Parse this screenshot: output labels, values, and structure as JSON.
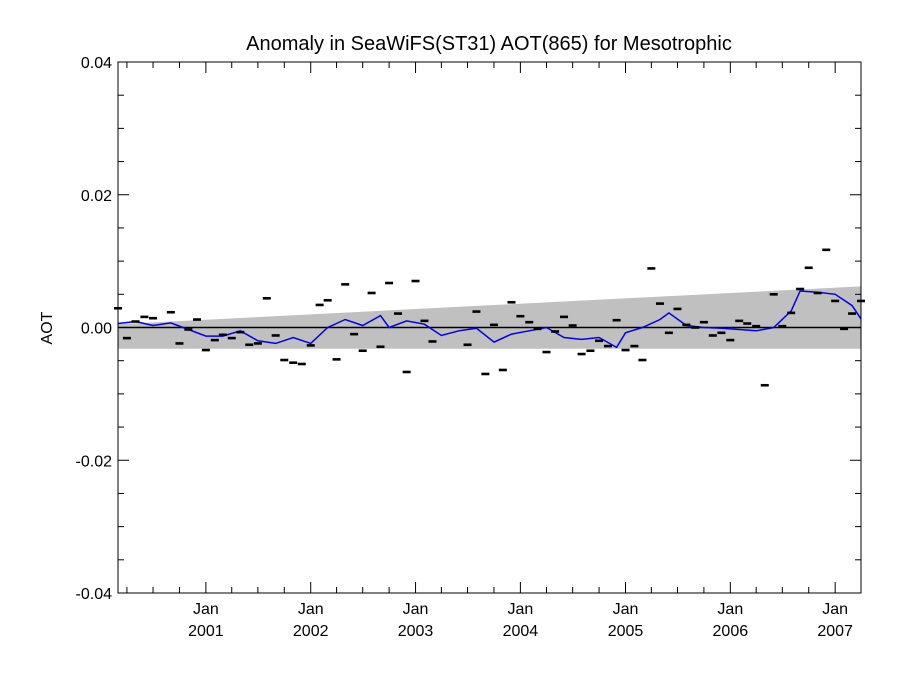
{
  "chart_data": {
    "type": "line",
    "title": "Anomaly in SeaWiFS(ST31) AOT(865) for Mesotrophic",
    "xlabel": "",
    "ylabel": "AOT",
    "xlim": [
      "2000-03-01",
      "2007-04-01"
    ],
    "ylim": [
      -0.04,
      0.04
    ],
    "yticks": [
      {
        "value": 0.04,
        "label": "0.04"
      },
      {
        "value": 0.02,
        "label": "0.02"
      },
      {
        "value": 0.0,
        "label": "0.00"
      },
      {
        "value": -0.02,
        "label": "-0.02"
      },
      {
        "value": -0.04,
        "label": "-0.04"
      }
    ],
    "xticks": [
      {
        "date": "2001-01-01",
        "label": [
          "Jan",
          "2001"
        ]
      },
      {
        "date": "2002-01-01",
        "label": [
          "Jan",
          "2002"
        ]
      },
      {
        "date": "2003-01-01",
        "label": [
          "Jan",
          "2003"
        ]
      },
      {
        "date": "2004-01-01",
        "label": [
          "Jan",
          "2004"
        ]
      },
      {
        "date": "2005-01-01",
        "label": [
          "Jan",
          "2005"
        ]
      },
      {
        "date": "2006-01-01",
        "label": [
          "Jan",
          "2006"
        ]
      },
      {
        "date": "2007-01-01",
        "label": [
          "Jan",
          "2007"
        ]
      }
    ],
    "zero_line": 0.0,
    "uncertainty_band": {
      "color": "#c0c0c0",
      "upper": [
        {
          "date": "2000-03-01",
          "y": 0.0005
        },
        {
          "date": "2007-04-01",
          "y": 0.0062
        }
      ],
      "lower": [
        {
          "date": "2000-03-01",
          "y": -0.0032
        },
        {
          "date": "2007-04-01",
          "y": -0.0032
        }
      ]
    },
    "series": [
      {
        "kind": "monthly",
        "marker": "dash",
        "color": "#000000",
        "points": [
          {
            "date": "2000-03-01",
            "y": 0.0029
          },
          {
            "date": "2000-04-01",
            "y": -0.0016
          },
          {
            "date": "2000-05-01",
            "y": 0.0009
          },
          {
            "date": "2000-06-01",
            "y": 0.0016
          },
          {
            "date": "2000-07-01",
            "y": 0.0014
          },
          {
            "date": "2000-09-01",
            "y": 0.0023
          },
          {
            "date": "2000-10-01",
            "y": -0.0024
          },
          {
            "date": "2000-11-01",
            "y": -0.0003
          },
          {
            "date": "2000-12-01",
            "y": 0.0012
          },
          {
            "date": "2001-01-01",
            "y": -0.0034
          },
          {
            "date": "2001-02-01",
            "y": -0.0019
          },
          {
            "date": "2001-03-01",
            "y": -0.0011
          },
          {
            "date": "2001-04-01",
            "y": -0.0016
          },
          {
            "date": "2001-05-01",
            "y": -0.0007
          },
          {
            "date": "2001-06-01",
            "y": -0.0026
          },
          {
            "date": "2001-07-01",
            "y": -0.0024
          },
          {
            "date": "2001-08-01",
            "y": 0.0044
          },
          {
            "date": "2001-09-01",
            "y": -0.0012
          },
          {
            "date": "2001-10-01",
            "y": -0.0049
          },
          {
            "date": "2001-11-01",
            "y": -0.0053
          },
          {
            "date": "2001-12-01",
            "y": -0.0055
          },
          {
            "date": "2002-01-01",
            "y": -0.0027
          },
          {
            "date": "2002-02-01",
            "y": 0.0034
          },
          {
            "date": "2002-03-01",
            "y": 0.0041
          },
          {
            "date": "2002-04-01",
            "y": -0.0048
          },
          {
            "date": "2002-05-01",
            "y": 0.0065
          },
          {
            "date": "2002-06-01",
            "y": -0.001
          },
          {
            "date": "2002-07-01",
            "y": -0.0035
          },
          {
            "date": "2002-08-01",
            "y": 0.0052
          },
          {
            "date": "2002-09-01",
            "y": -0.0029
          },
          {
            "date": "2002-10-01",
            "y": 0.0067
          },
          {
            "date": "2002-11-01",
            "y": 0.0021
          },
          {
            "date": "2002-12-01",
            "y": -0.0067
          },
          {
            "date": "2003-01-01",
            "y": 0.007
          },
          {
            "date": "2003-02-01",
            "y": 0.001
          },
          {
            "date": "2003-03-01",
            "y": -0.0021
          },
          {
            "date": "2003-07-01",
            "y": -0.0026
          },
          {
            "date": "2003-08-01",
            "y": 0.0024
          },
          {
            "date": "2003-09-01",
            "y": -0.007
          },
          {
            "date": "2003-10-01",
            "y": 0.0004
          },
          {
            "date": "2003-11-01",
            "y": -0.0064
          },
          {
            "date": "2003-12-01",
            "y": 0.0038
          },
          {
            "date": "2004-01-01",
            "y": 0.0017
          },
          {
            "date": "2004-02-01",
            "y": 0.0008
          },
          {
            "date": "2004-03-01",
            "y": -0.0002
          },
          {
            "date": "2004-04-01",
            "y": -0.0037
          },
          {
            "date": "2004-05-01",
            "y": -0.0006
          },
          {
            "date": "2004-06-01",
            "y": 0.0016
          },
          {
            "date": "2004-07-01",
            "y": 0.0003
          },
          {
            "date": "2004-08-01",
            "y": -0.004
          },
          {
            "date": "2004-09-01",
            "y": -0.0035
          },
          {
            "date": "2004-10-01",
            "y": -0.002
          },
          {
            "date": "2004-11-01",
            "y": -0.0028
          },
          {
            "date": "2004-12-01",
            "y": 0.0011
          },
          {
            "date": "2005-01-01",
            "y": -0.0034
          },
          {
            "date": "2005-02-01",
            "y": -0.0028
          },
          {
            "date": "2005-03-01",
            "y": -0.0049
          },
          {
            "date": "2005-04-01",
            "y": 0.0089
          },
          {
            "date": "2005-05-01",
            "y": 0.0036
          },
          {
            "date": "2005-06-01",
            "y": -0.0008
          },
          {
            "date": "2005-07-01",
            "y": 0.0028
          },
          {
            "date": "2005-08-01",
            "y": 0.0004
          },
          {
            "date": "2005-09-01",
            "y": 0.0
          },
          {
            "date": "2005-10-01",
            "y": 0.0008
          },
          {
            "date": "2005-11-01",
            "y": -0.0012
          },
          {
            "date": "2005-12-01",
            "y": -0.0008
          },
          {
            "date": "2006-01-01",
            "y": -0.0019
          },
          {
            "date": "2006-02-01",
            "y": 0.001
          },
          {
            "date": "2006-03-01",
            "y": 0.0006
          },
          {
            "date": "2006-04-01",
            "y": 0.0002
          },
          {
            "date": "2006-05-01",
            "y": -0.0087
          },
          {
            "date": "2006-06-01",
            "y": 0.005
          },
          {
            "date": "2006-07-01",
            "y": 0.0002
          },
          {
            "date": "2006-08-01",
            "y": 0.0022
          },
          {
            "date": "2006-09-01",
            "y": 0.0058
          },
          {
            "date": "2006-10-01",
            "y": 0.009
          },
          {
            "date": "2006-11-01",
            "y": 0.0052
          },
          {
            "date": "2006-12-01",
            "y": 0.0117
          },
          {
            "date": "2007-01-01",
            "y": 0.004
          },
          {
            "date": "2007-02-01",
            "y": -0.0002
          },
          {
            "date": "2007-03-01",
            "y": 0.0021
          },
          {
            "date": "2007-04-01",
            "y": 0.004
          }
        ]
      },
      {
        "kind": "smoothed",
        "marker": "line",
        "color": "#0000ee",
        "points": [
          {
            "date": "2000-03-01",
            "y": 0.0006
          },
          {
            "date": "2000-05-01",
            "y": 0.0009
          },
          {
            "date": "2000-07-01",
            "y": 0.0003
          },
          {
            "date": "2000-09-01",
            "y": 0.0007
          },
          {
            "date": "2000-11-01",
            "y": -0.0003
          },
          {
            "date": "2001-01-01",
            "y": -0.0013
          },
          {
            "date": "2001-03-01",
            "y": -0.0013
          },
          {
            "date": "2001-05-01",
            "y": -0.0005
          },
          {
            "date": "2001-07-01",
            "y": -0.002
          },
          {
            "date": "2001-09-01",
            "y": -0.0024
          },
          {
            "date": "2001-11-01",
            "y": -0.0015
          },
          {
            "date": "2002-01-01",
            "y": -0.0024
          },
          {
            "date": "2002-03-01",
            "y": 0.0
          },
          {
            "date": "2002-05-01",
            "y": 0.0012
          },
          {
            "date": "2002-07-01",
            "y": 0.0003
          },
          {
            "date": "2002-09-01",
            "y": 0.0018
          },
          {
            "date": "2002-10-01",
            "y": 0.0
          },
          {
            "date": "2002-12-01",
            "y": 0.001
          },
          {
            "date": "2003-02-01",
            "y": 0.0005
          },
          {
            "date": "2003-04-01",
            "y": -0.0012
          },
          {
            "date": "2003-06-01",
            "y": -0.0005
          },
          {
            "date": "2003-08-01",
            "y": -0.0001
          },
          {
            "date": "2003-10-01",
            "y": -0.0022
          },
          {
            "date": "2003-12-01",
            "y": -0.001
          },
          {
            "date": "2004-02-01",
            "y": -0.0005
          },
          {
            "date": "2004-04-01",
            "y": 0.0
          },
          {
            "date": "2004-06-01",
            "y": -0.0015
          },
          {
            "date": "2004-08-01",
            "y": -0.0018
          },
          {
            "date": "2004-10-01",
            "y": -0.0015
          },
          {
            "date": "2004-12-01",
            "y": -0.003
          },
          {
            "date": "2005-01-01",
            "y": -0.0008
          },
          {
            "date": "2005-03-01",
            "y": 0.0
          },
          {
            "date": "2005-05-01",
            "y": 0.0012
          },
          {
            "date": "2005-06-01",
            "y": 0.0022
          },
          {
            "date": "2005-08-01",
            "y": 0.0003
          },
          {
            "date": "2005-10-01",
            "y": 0.0
          },
          {
            "date": "2005-12-01",
            "y": -0.0001
          },
          {
            "date": "2006-02-01",
            "y": -0.0003
          },
          {
            "date": "2006-04-01",
            "y": -0.0005
          },
          {
            "date": "2006-06-01",
            "y": 0.0
          },
          {
            "date": "2006-08-01",
            "y": 0.0025
          },
          {
            "date": "2006-09-01",
            "y": 0.0055
          },
          {
            "date": "2006-11-01",
            "y": 0.0053
          },
          {
            "date": "2007-01-01",
            "y": 0.005
          },
          {
            "date": "2007-03-01",
            "y": 0.0033
          },
          {
            "date": "2007-04-01",
            "y": 0.0013
          }
        ]
      }
    ]
  }
}
